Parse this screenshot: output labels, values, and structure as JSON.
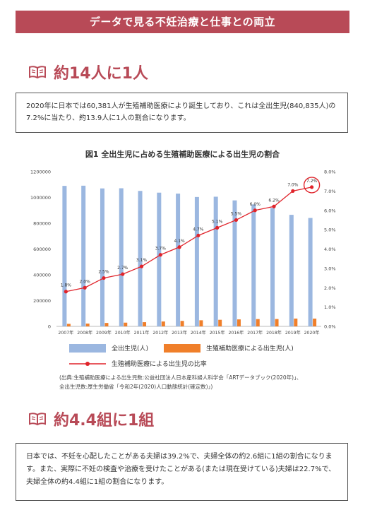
{
  "banner": {
    "title": "データで見る不妊治療と仕事との両立"
  },
  "section1": {
    "heading": "約14人に1人",
    "body": "2020年に日本では60,381人が生殖補助医療により誕生しており、これは全出生児(840,835人)の7.2%に当たり、約13.9人に1人の割合になります。"
  },
  "chart_title": "図1 全出生児に占める生殖補助医療による出生児の割合",
  "chart_data": {
    "type": "bar",
    "categories": [
      "2007年",
      "2008年",
      "2009年",
      "2010年",
      "2011年",
      "2012年",
      "2013年",
      "2014年",
      "2015年",
      "2016年",
      "2017年",
      "2018年",
      "2019年",
      "2020年"
    ],
    "series": [
      {
        "name": "全出生児(人)",
        "axis": "left",
        "color": "#9bb7e0",
        "values": [
          1089818,
          1091156,
          1070035,
          1071304,
          1050806,
          1037231,
          1029816,
          1003539,
          1005721,
          977242,
          946065,
          918400,
          865239,
          840835
        ]
      },
      {
        "name": "生殖補助医療による出生児(人)",
        "axis": "left",
        "color": "#f07f2a",
        "values": [
          19595,
          21704,
          26680,
          28945,
          32426,
          37953,
          42554,
          47322,
          51001,
          54110,
          56617,
          56979,
          60598,
          60381
        ]
      },
      {
        "name": "生殖補助医療による出生児の比率",
        "axis": "right",
        "type": "line",
        "color": "#e0242b",
        "values": [
          1.8,
          2.0,
          2.5,
          2.7,
          3.1,
          3.7,
          4.1,
          4.7,
          5.1,
          5.5,
          6.0,
          6.2,
          7.0,
          7.2
        ],
        "labels": [
          "1.8%",
          "2.0%",
          "2.5%",
          "2.7%",
          "3.1%",
          "3.7%",
          "4.1%",
          "4.7%",
          "5.1%",
          "5.5%",
          "6.0%",
          "6.2%",
          "7.0%",
          "7.2%"
        ]
      }
    ],
    "left_ticks": [
      "0",
      "200000",
      "400000",
      "600000",
      "800000",
      "1000000",
      "1200000"
    ],
    "right_ticks": [
      "0.0%",
      "1.0%",
      "2.0%",
      "3.0%",
      "4.0%",
      "5.0%",
      "6.0%",
      "7.0%",
      "8.0%"
    ],
    "ylim": [
      0,
      1200000
    ],
    "y2lim": [
      0,
      8
    ],
    "highlight": "2020年"
  },
  "legend": {
    "bar1": "全出生児(人)",
    "bar2": "生殖補助医療による出生児(人)",
    "line": "生殖補助医療による出生児の比率"
  },
  "source": {
    "line1": "(出典:生殖補助医療による出生児数:公益社団法人日本産科婦人科学会「ARTデータブック(2020年)」、",
    "line2": "全出生児数:厚生労働省「令和2年(2020)人口動態統計(確定数)」)"
  },
  "section2": {
    "heading": "約4.4組に1組",
    "body": "日本では、不妊を心配したことがある夫婦は39.2%で、夫婦全体の約2.6組に1組の割合になります。また、実際に不妊の検査や治療を受けたことがある(または現在受けている)夫婦は22.7%で、夫婦全体の約4.4組に1組の割合になります。"
  },
  "colors": {
    "accent": "#b84a57",
    "bar1": "#9bb7e0",
    "bar2": "#f07f2a",
    "line": "#e0242b"
  }
}
